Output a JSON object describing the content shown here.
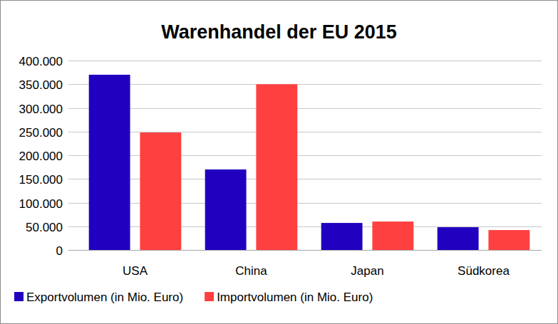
{
  "chart_data": {
    "type": "bar",
    "title": "Warenhandel der EU 2015",
    "categories": [
      "USA",
      "China",
      "Japan",
      "Südkorea"
    ],
    "series": [
      {
        "name": "Exportvolumen (in Mio. Euro)",
        "color": "#2200c0",
        "values": [
          370000,
          170000,
          57000,
          48000
        ]
      },
      {
        "name": "Importvolumen (in Mio. Euro)",
        "color": "#ff4040",
        "values": [
          248000,
          350000,
          60000,
          42000
        ]
      }
    ],
    "ylim": [
      0,
      400000
    ],
    "yticks": [
      0,
      {
        "value": 50000,
        "label": "50.000"
      },
      {
        "value": 100000,
        "label": "100.000"
      },
      {
        "value": 150000,
        "label": "150.000"
      },
      {
        "value": 200000,
        "label": "200.000"
      },
      {
        "value": 250000,
        "label": "250.000"
      },
      {
        "value": 300000,
        "label": "300.000"
      },
      {
        "value": 350000,
        "label": "350.000"
      },
      {
        "value": 400000,
        "label": "400.000"
      }
    ],
    "grid": true,
    "legend": "bottom",
    "data_labels": false
  }
}
